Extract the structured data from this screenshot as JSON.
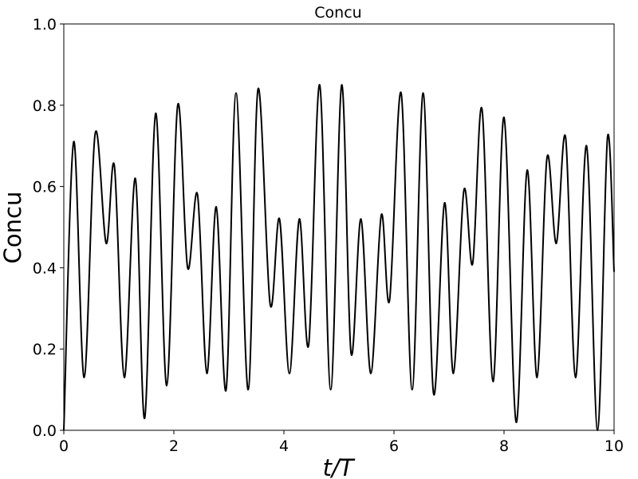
{
  "chart_data": {
    "type": "line",
    "title": "Concu",
    "xlabel": "t/T",
    "ylabel": "Concu",
    "xlim": [
      0,
      10
    ],
    "ylim": [
      0,
      1.0
    ],
    "xticks": [
      "0",
      "2",
      "4",
      "6",
      "8",
      "10"
    ],
    "yticks": [
      "0.0",
      "0.2",
      "0.4",
      "0.6",
      "0.8",
      "1.0"
    ],
    "grid": false,
    "line_color": "#000000",
    "series": [
      {
        "x": [
          0,
          0.18,
          0.37,
          0.57,
          0.77,
          0.92,
          1.1,
          1.3,
          1.47,
          1.67,
          1.87,
          2.07,
          2.25,
          2.43,
          2.6,
          2.77,
          2.95,
          3.13,
          3.35,
          3.53,
          3.75,
          3.92,
          4.1,
          4.28,
          4.45,
          4.65,
          4.85,
          5.05,
          5.22,
          5.4,
          5.58,
          5.77,
          5.92,
          6.13,
          6.33,
          6.53,
          6.72,
          6.92,
          7.08,
          7.27,
          7.43,
          7.6,
          7.8,
          8.0,
          8.22,
          8.42,
          8.6,
          8.78,
          8.95,
          9.12,
          9.3,
          9.5,
          9.7,
          9.88,
          10.0
        ],
        "values": [
          0.0,
          0.71,
          0.13,
          0.73,
          0.46,
          0.65,
          0.13,
          0.62,
          0.03,
          0.78,
          0.11,
          0.8,
          0.4,
          0.58,
          0.14,
          0.55,
          0.1,
          0.83,
          0.1,
          0.84,
          0.31,
          0.52,
          0.14,
          0.52,
          0.21,
          0.85,
          0.1,
          0.85,
          0.19,
          0.52,
          0.14,
          0.53,
          0.32,
          0.83,
          0.1,
          0.83,
          0.09,
          0.56,
          0.14,
          0.59,
          0.41,
          0.79,
          0.12,
          0.77,
          0.02,
          0.64,
          0.13,
          0.67,
          0.46,
          0.72,
          0.13,
          0.7,
          0.0,
          0.72,
          0.39
        ]
      }
    ]
  }
}
